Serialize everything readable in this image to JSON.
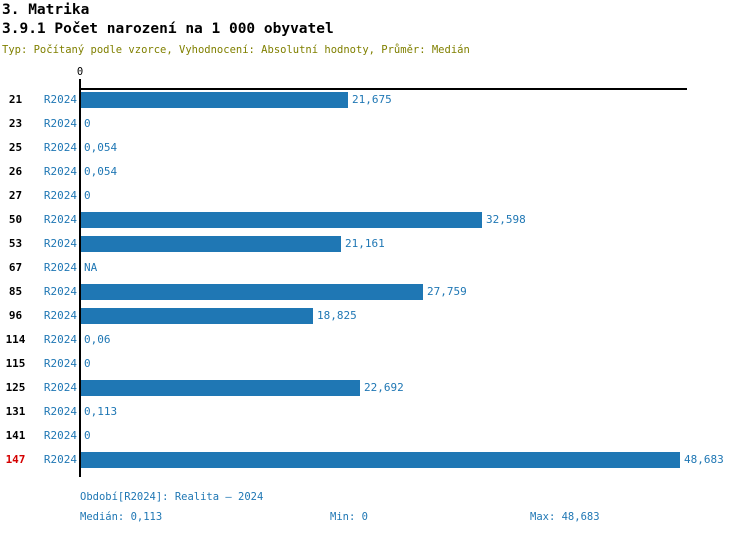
{
  "header": {
    "title": "3. Matrika",
    "subtitle": "3.9.1 Počet narození na 1 000 obyvatel",
    "meta": "Typ: Počítaný podle vzorce, Vyhodnocení: Absolutní hodnoty, Průměr: Medián"
  },
  "colors": {
    "bar": "#1f77b4",
    "blue_text": "#1f77b4",
    "highlight_red": "#d40000",
    "meta_olive": "#808000",
    "axis_black": "#000000"
  },
  "chart_data": {
    "type": "bar",
    "orientation": "horizontal",
    "title": "3.9.1 Počet narození na 1 000 obyvatel",
    "series_label": "R2024",
    "axis_zero_label": "0",
    "xlim": [
      0,
      49.3
    ],
    "grid": false,
    "rows": [
      {
        "id": "21",
        "value": 21.675,
        "label": "21,675",
        "highlight": false
      },
      {
        "id": "23",
        "value": 0,
        "label": "0",
        "highlight": false
      },
      {
        "id": "25",
        "value": 0.054,
        "label": "0,054",
        "highlight": false
      },
      {
        "id": "26",
        "value": 0.054,
        "label": "0,054",
        "highlight": false
      },
      {
        "id": "27",
        "value": 0,
        "label": "0",
        "highlight": false
      },
      {
        "id": "50",
        "value": 32.598,
        "label": "32,598",
        "highlight": false
      },
      {
        "id": "53",
        "value": 21.161,
        "label": "21,161",
        "highlight": false
      },
      {
        "id": "67",
        "value": null,
        "label": "NA",
        "highlight": false
      },
      {
        "id": "85",
        "value": 27.759,
        "label": "27,759",
        "highlight": false
      },
      {
        "id": "96",
        "value": 18.825,
        "label": "18,825",
        "highlight": false
      },
      {
        "id": "114",
        "value": 0.06,
        "label": "0,06",
        "highlight": false
      },
      {
        "id": "115",
        "value": 0,
        "label": "0",
        "highlight": false
      },
      {
        "id": "125",
        "value": 22.692,
        "label": "22,692",
        "highlight": false
      },
      {
        "id": "131",
        "value": 0.113,
        "label": "0,113",
        "highlight": false
      },
      {
        "id": "141",
        "value": 0,
        "label": "0",
        "highlight": false
      },
      {
        "id": "147",
        "value": 48.683,
        "label": "48,683",
        "highlight": true
      }
    ]
  },
  "footer": {
    "period": "Období[R2024]: Realita – 2024",
    "median": "Medián: 0,113",
    "min": "Min: 0",
    "max": "Max: 48,683"
  }
}
